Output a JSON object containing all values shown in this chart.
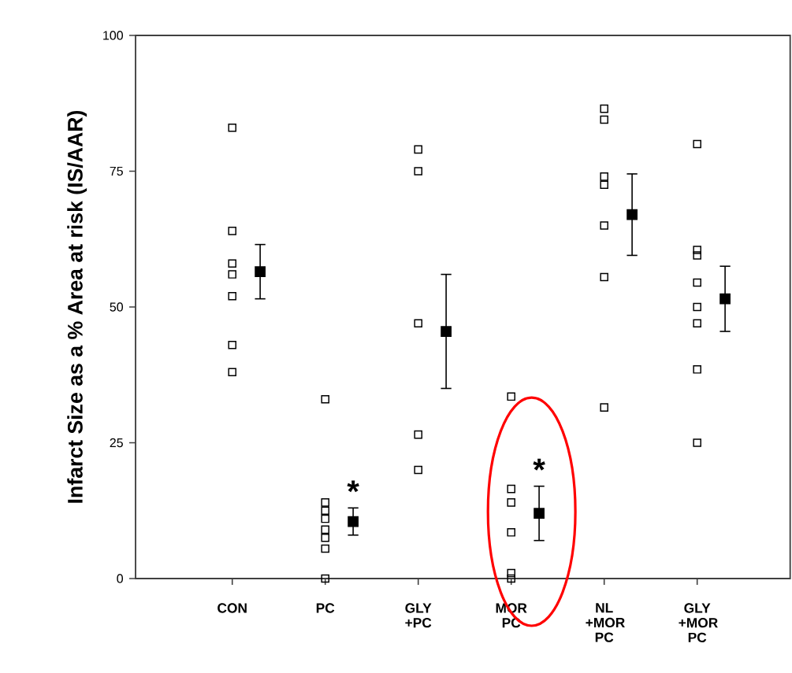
{
  "chart_data": {
    "type": "scatter",
    "ylabel": "Infarct Size as a % Area at risk (IS/AAR)",
    "categories": [
      "CON",
      "PC",
      "GLY +PC",
      "MOR PC",
      "NL +MOR PC",
      "GLY +MOR PC"
    ],
    "ylim": [
      0,
      100
    ],
    "yticks": [
      0,
      25,
      50,
      75,
      100
    ],
    "marker": "square",
    "grid": false,
    "series": [
      {
        "color": "#000000",
        "x": [
          "CON",
          "CON",
          "CON",
          "CON",
          "CON",
          "CON",
          "CON",
          "PC",
          "PC",
          "PC",
          "PC",
          "PC",
          "PC",
          "PC",
          "PC",
          "GLY +PC",
          "GLY +PC",
          "GLY +PC",
          "GLY +PC",
          "GLY +PC",
          "MOR PC",
          "MOR PC",
          "MOR PC",
          "MOR PC",
          "MOR PC",
          "MOR PC",
          "NL +MOR PC",
          "NL +MOR PC",
          "NL +MOR PC",
          "NL +MOR PC",
          "NL +MOR PC",
          "NL +MOR PC",
          "NL +MOR PC",
          "GLY +MOR PC",
          "GLY +MOR PC",
          "GLY +MOR PC",
          "GLY +MOR PC",
          "GLY +MOR PC",
          "GLY +MOR PC",
          "GLY +MOR PC",
          "GLY +MOR PC"
        ],
        "values": [
          83,
          64,
          58,
          56,
          52,
          43,
          38,
          33,
          14,
          12.5,
          11,
          9,
          7.5,
          5.5,
          0,
          79,
          75,
          47,
          26.5,
          20,
          33.5,
          16.5,
          14,
          8.5,
          1,
          0,
          86.5,
          84.5,
          74,
          72.5,
          65,
          55.5,
          31.5,
          80,
          60.5,
          59.5,
          54.5,
          50,
          47,
          38.5,
          25
        ]
      },
      {
        "color": "#000000",
        "x": [
          "CON",
          "PC",
          "GLY +PC",
          "MOR PC",
          "NL +MOR PC",
          "GLY +MOR PC"
        ],
        "values": [
          56.5,
          10.5,
          45.5,
          12,
          67,
          51.5
        ],
        "errors": [
          5,
          2.5,
          10.5,
          5,
          7.5,
          6
        ]
      }
    ],
    "annotations": [
      {
        "text": "*",
        "x": "PC",
        "y": 13
      },
      {
        "text": "*",
        "x": "MOR PC",
        "y": 17
      }
    ]
  }
}
